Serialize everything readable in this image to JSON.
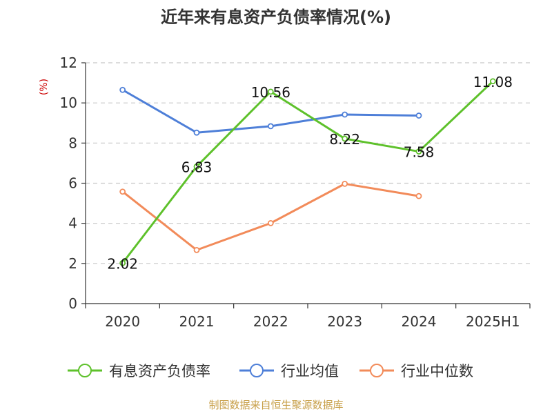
{
  "chart_data": {
    "type": "line",
    "title": "近年来有息资产负债率情况(%)",
    "ylabel": "(%)",
    "xlabel": "",
    "categories": [
      "2020",
      "2021",
      "2022",
      "2023",
      "2024",
      "2025H1"
    ],
    "ylim": [
      0,
      12
    ],
    "yticks": [
      0,
      2,
      4,
      6,
      8,
      10,
      12
    ],
    "grid": true,
    "legend_position": "bottom",
    "series": [
      {
        "name": "有息资产负债率",
        "color": "#5ec12b",
        "values": [
          2.02,
          6.83,
          10.56,
          8.22,
          7.58,
          11.08
        ],
        "labels": [
          "2.02",
          "6.83",
          "10.56",
          "8.22",
          "7.58",
          "11.08"
        ]
      },
      {
        "name": "行业均值",
        "color": "#4e7fd8",
        "values": [
          10.65,
          8.52,
          8.84,
          9.42,
          9.37,
          null
        ],
        "labels": []
      },
      {
        "name": "行业中位数",
        "color": "#f28b5a",
        "values": [
          5.58,
          2.67,
          4.01,
          5.97,
          5.36,
          null
        ],
        "labels": []
      }
    ],
    "source": "制图数据来自恒生聚源数据库"
  }
}
